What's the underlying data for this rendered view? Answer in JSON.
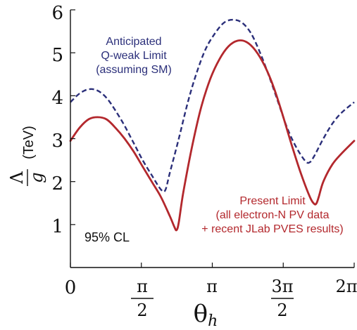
{
  "chart_data": {
    "type": "line",
    "xlabel": {
      "symbol": "θ",
      "subscript": "h"
    },
    "ylabel": {
      "numerator": "Λ",
      "denominator": "g",
      "unit": "(TeV)"
    },
    "xlim": [
      0,
      6.2832
    ],
    "ylim": [
      0,
      6
    ],
    "y_ticks": [
      "1",
      "2",
      "3",
      "4",
      "5",
      "6"
    ],
    "x_ticks": [
      {
        "value": 0,
        "label": "0"
      },
      {
        "value": 1.5708,
        "num": "π",
        "den": "2"
      },
      {
        "value": 3.1416,
        "label": "π"
      },
      {
        "value": 4.7124,
        "num": "3π",
        "den": "2"
      },
      {
        "value": 6.2832,
        "label": "2π"
      }
    ],
    "grid": false,
    "colors": {
      "anticipated": "#2b2f7a",
      "present": "#b3282d",
      "axis": "#111111"
    },
    "series": [
      {
        "key": "anticipated",
        "style": "dashed",
        "x": [
          0,
          0.2,
          0.4,
          0.6,
          0.8,
          1.0,
          1.2,
          1.4,
          1.6,
          1.8,
          2.0,
          2.1,
          2.2,
          2.4,
          2.6,
          2.8,
          3.0,
          3.2,
          3.4,
          3.6,
          3.8,
          4.0,
          4.2,
          4.4,
          4.6,
          4.8,
          5.0,
          5.2,
          5.3,
          5.4,
          5.6,
          5.8,
          6.0,
          6.2832
        ],
        "y": [
          3.85,
          4.05,
          4.15,
          4.12,
          3.95,
          3.65,
          3.3,
          2.9,
          2.5,
          2.15,
          1.82,
          1.8,
          2.2,
          3.0,
          3.85,
          4.55,
          5.1,
          5.45,
          5.7,
          5.77,
          5.7,
          5.45,
          5.0,
          4.45,
          3.85,
          3.25,
          2.8,
          2.48,
          2.45,
          2.6,
          3.0,
          3.35,
          3.6,
          3.85
        ]
      },
      {
        "key": "present",
        "style": "solid",
        "x": [
          0,
          0.2,
          0.4,
          0.6,
          0.8,
          1.0,
          1.2,
          1.4,
          1.6,
          1.8,
          2.0,
          2.2,
          2.3,
          2.35,
          2.4,
          2.5,
          2.7,
          2.9,
          3.1,
          3.3,
          3.5,
          3.7,
          3.9,
          4.1,
          4.3,
          4.5,
          4.7,
          4.9,
          5.1,
          5.3,
          5.4,
          5.45,
          5.5,
          5.6,
          5.8,
          6.0,
          6.2832
        ],
        "y": [
          2.95,
          3.25,
          3.45,
          3.5,
          3.45,
          3.25,
          3.0,
          2.7,
          2.35,
          2.0,
          1.65,
          1.2,
          0.95,
          0.87,
          1.05,
          1.75,
          2.85,
          3.75,
          4.4,
          4.85,
          5.15,
          5.28,
          5.25,
          5.05,
          4.7,
          4.2,
          3.55,
          2.85,
          2.2,
          1.65,
          1.48,
          1.5,
          1.65,
          2.0,
          2.4,
          2.65,
          2.95
        ]
      }
    ],
    "annotations": {
      "anticipated": [
        "Anticipated",
        "Q-weak Limit",
        "(assuming SM)"
      ],
      "present": [
        "Present Limit",
        "(all electron-N PV data",
        "+ recent JLab PVES results)"
      ],
      "cl": "95% CL"
    }
  }
}
